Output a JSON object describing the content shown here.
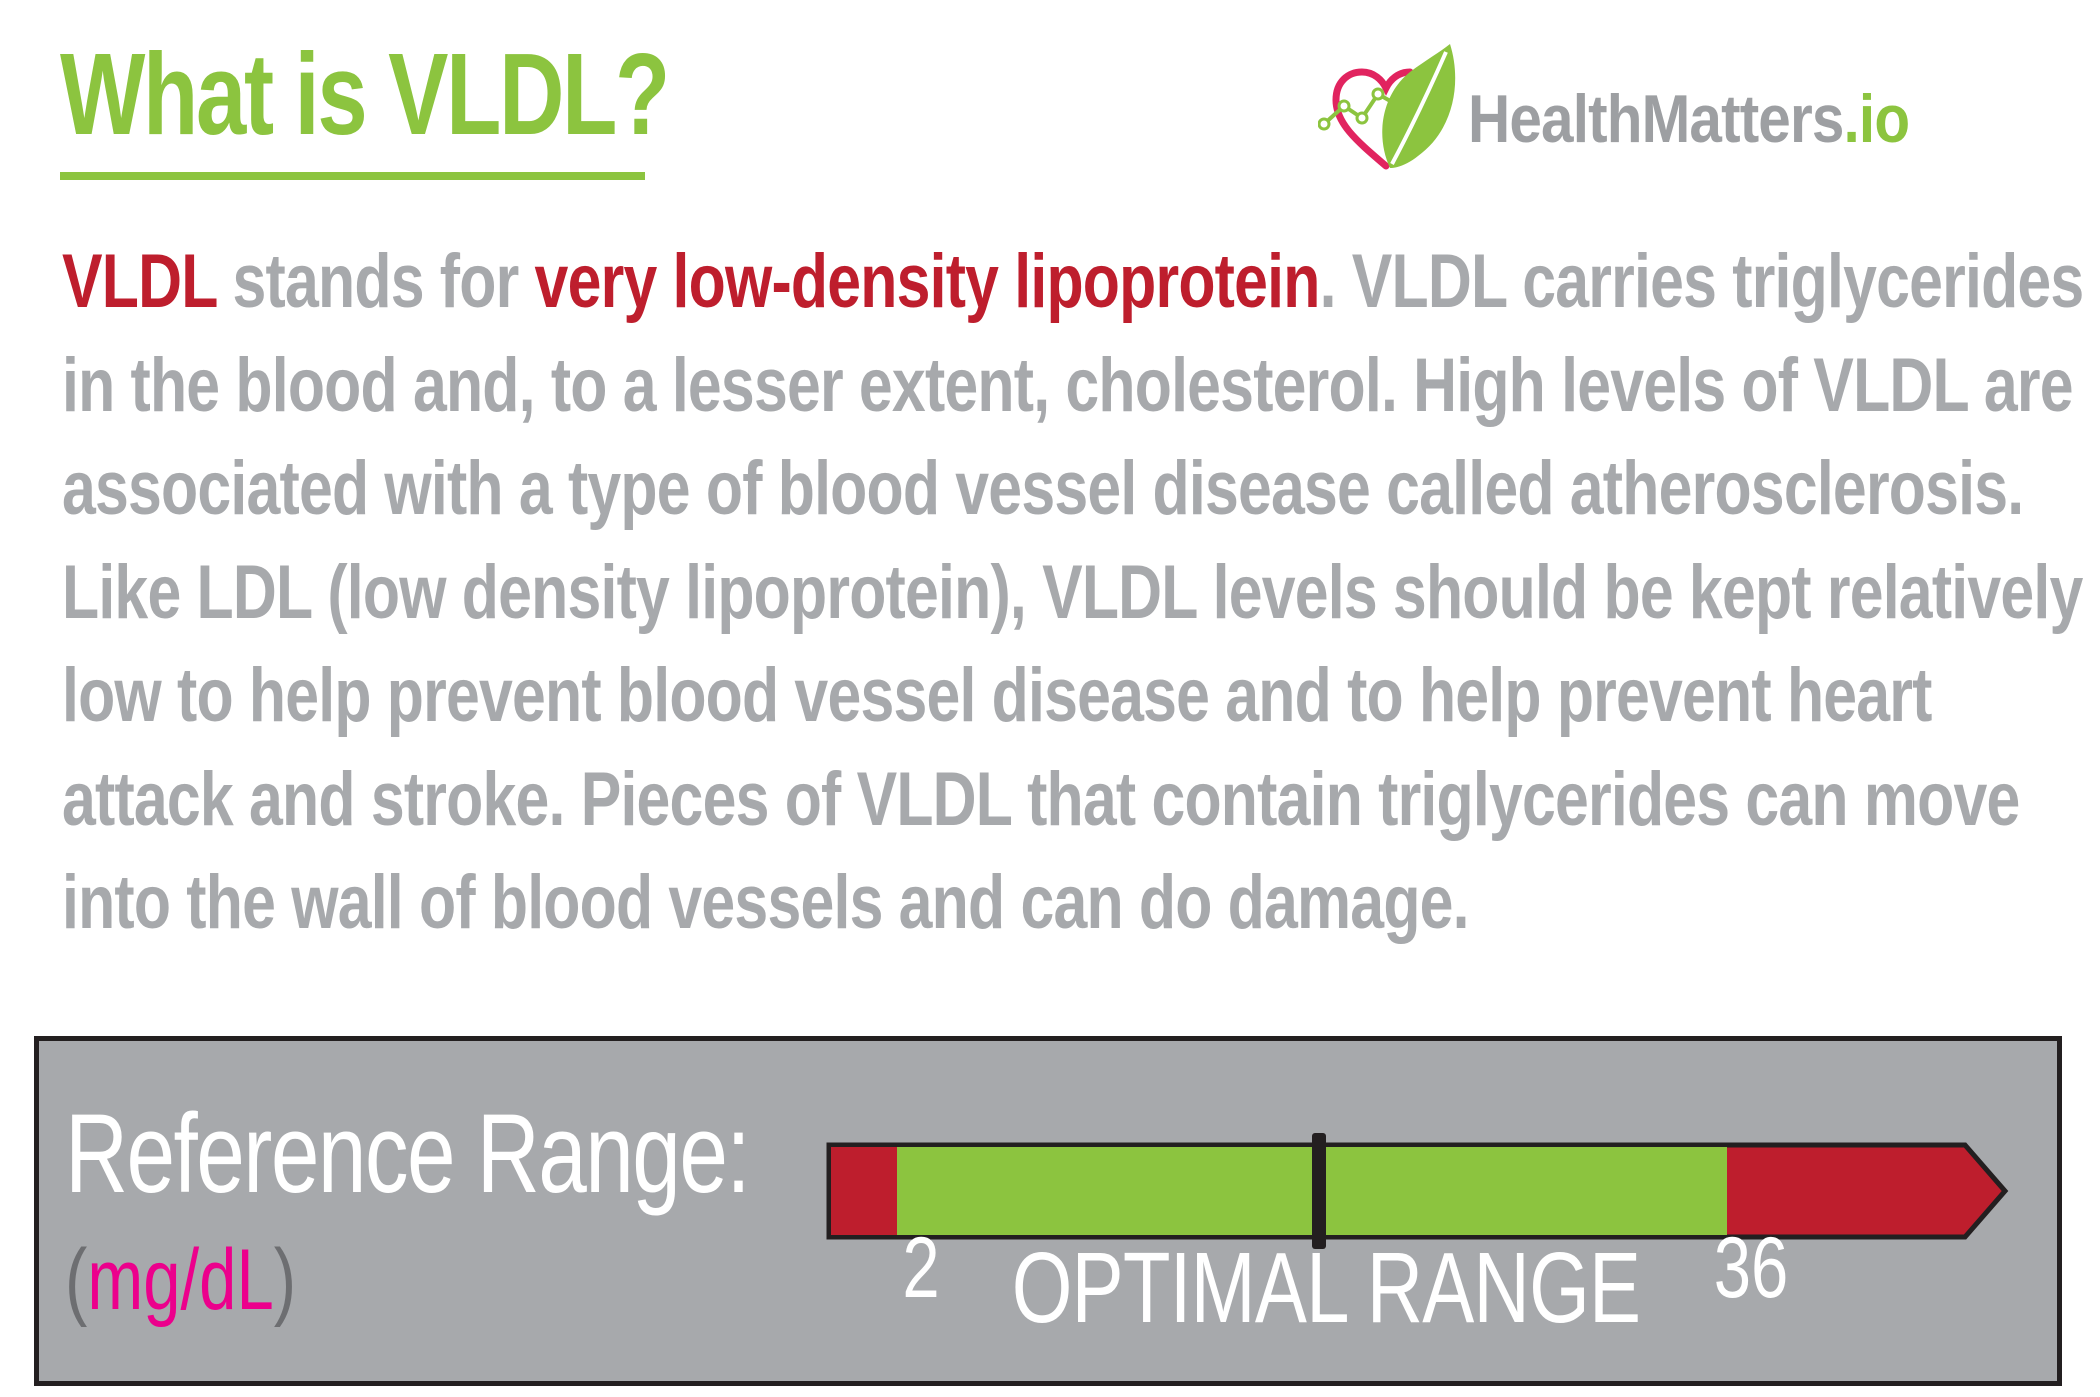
{
  "header": {
    "title": "What is VLDL?"
  },
  "logo": {
    "name": "HealthMatters",
    "tld": ".io",
    "icon": "heart-leaf-logo-icon"
  },
  "body": {
    "term": "VLDL",
    "segment1": " stands for ",
    "expansion": "very low-density lipoprotein",
    "segment2": ". VLDL carries triglycerides in the blood and, to a lesser extent, cholesterol. High levels of VLDL are associated with a type of blood vessel disease called atherosclerosis. Like LDL (low density lipoprotein), VLDL levels should be kept relatively low to help prevent blood vessel disease and to help prevent heart attack and stroke. Pieces of VLDL that contain triglycerides can move into the wall of blood vessels and can do damage."
  },
  "reference": {
    "title": "Reference Range:",
    "unit_open": "(",
    "unit": "mg/dL",
    "unit_close": ")",
    "low": "2",
    "high": "36",
    "label": "OPTIMAL RANGE",
    "colors": {
      "out_of_range": "#be1e2d",
      "optimal": "#8cc43f",
      "panel": "#a7a9ac"
    }
  }
}
